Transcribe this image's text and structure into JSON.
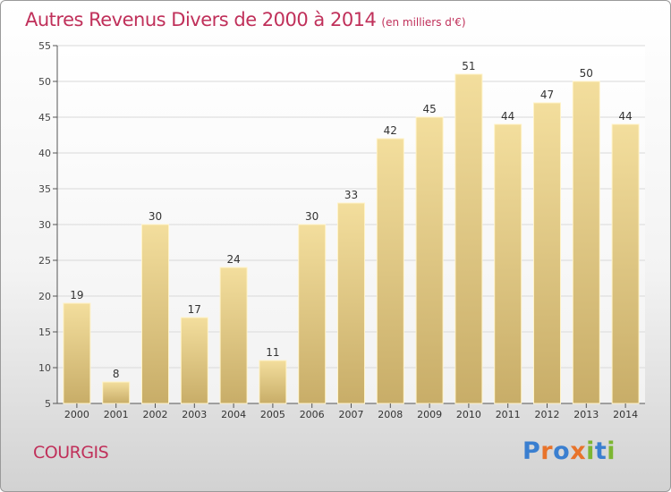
{
  "title": "Autres Revenus Divers de 2000 à 2014",
  "subtitle": "(en milliers d'€)",
  "commune": "COURGIS",
  "logo": {
    "text": "Proxiti",
    "letter_colors": [
      "#3a7fd0",
      "#e8732a",
      "#3a7fd0",
      "#e8732a",
      "#7cb632",
      "#3a7fd0",
      "#7cb632"
    ]
  },
  "colors": {
    "title": "#c0305a",
    "bar_light": "#f3de9d",
    "bar_dark": "#c8ad68",
    "grid": "#d9d9d9"
  },
  "chart_data": {
    "type": "bar",
    "categories": [
      "2000",
      "2001",
      "2002",
      "2003",
      "2004",
      "2005",
      "2006",
      "2007",
      "2008",
      "2009",
      "2010",
      "2011",
      "2012",
      "2013",
      "2014"
    ],
    "values": [
      19,
      8,
      30,
      17,
      24,
      11,
      30,
      33,
      42,
      45,
      51,
      44,
      47,
      50,
      44
    ],
    "ylim": [
      5,
      55
    ],
    "yticks": [
      5,
      10,
      15,
      20,
      25,
      30,
      35,
      40,
      45,
      50,
      55
    ],
    "grid": true
  }
}
